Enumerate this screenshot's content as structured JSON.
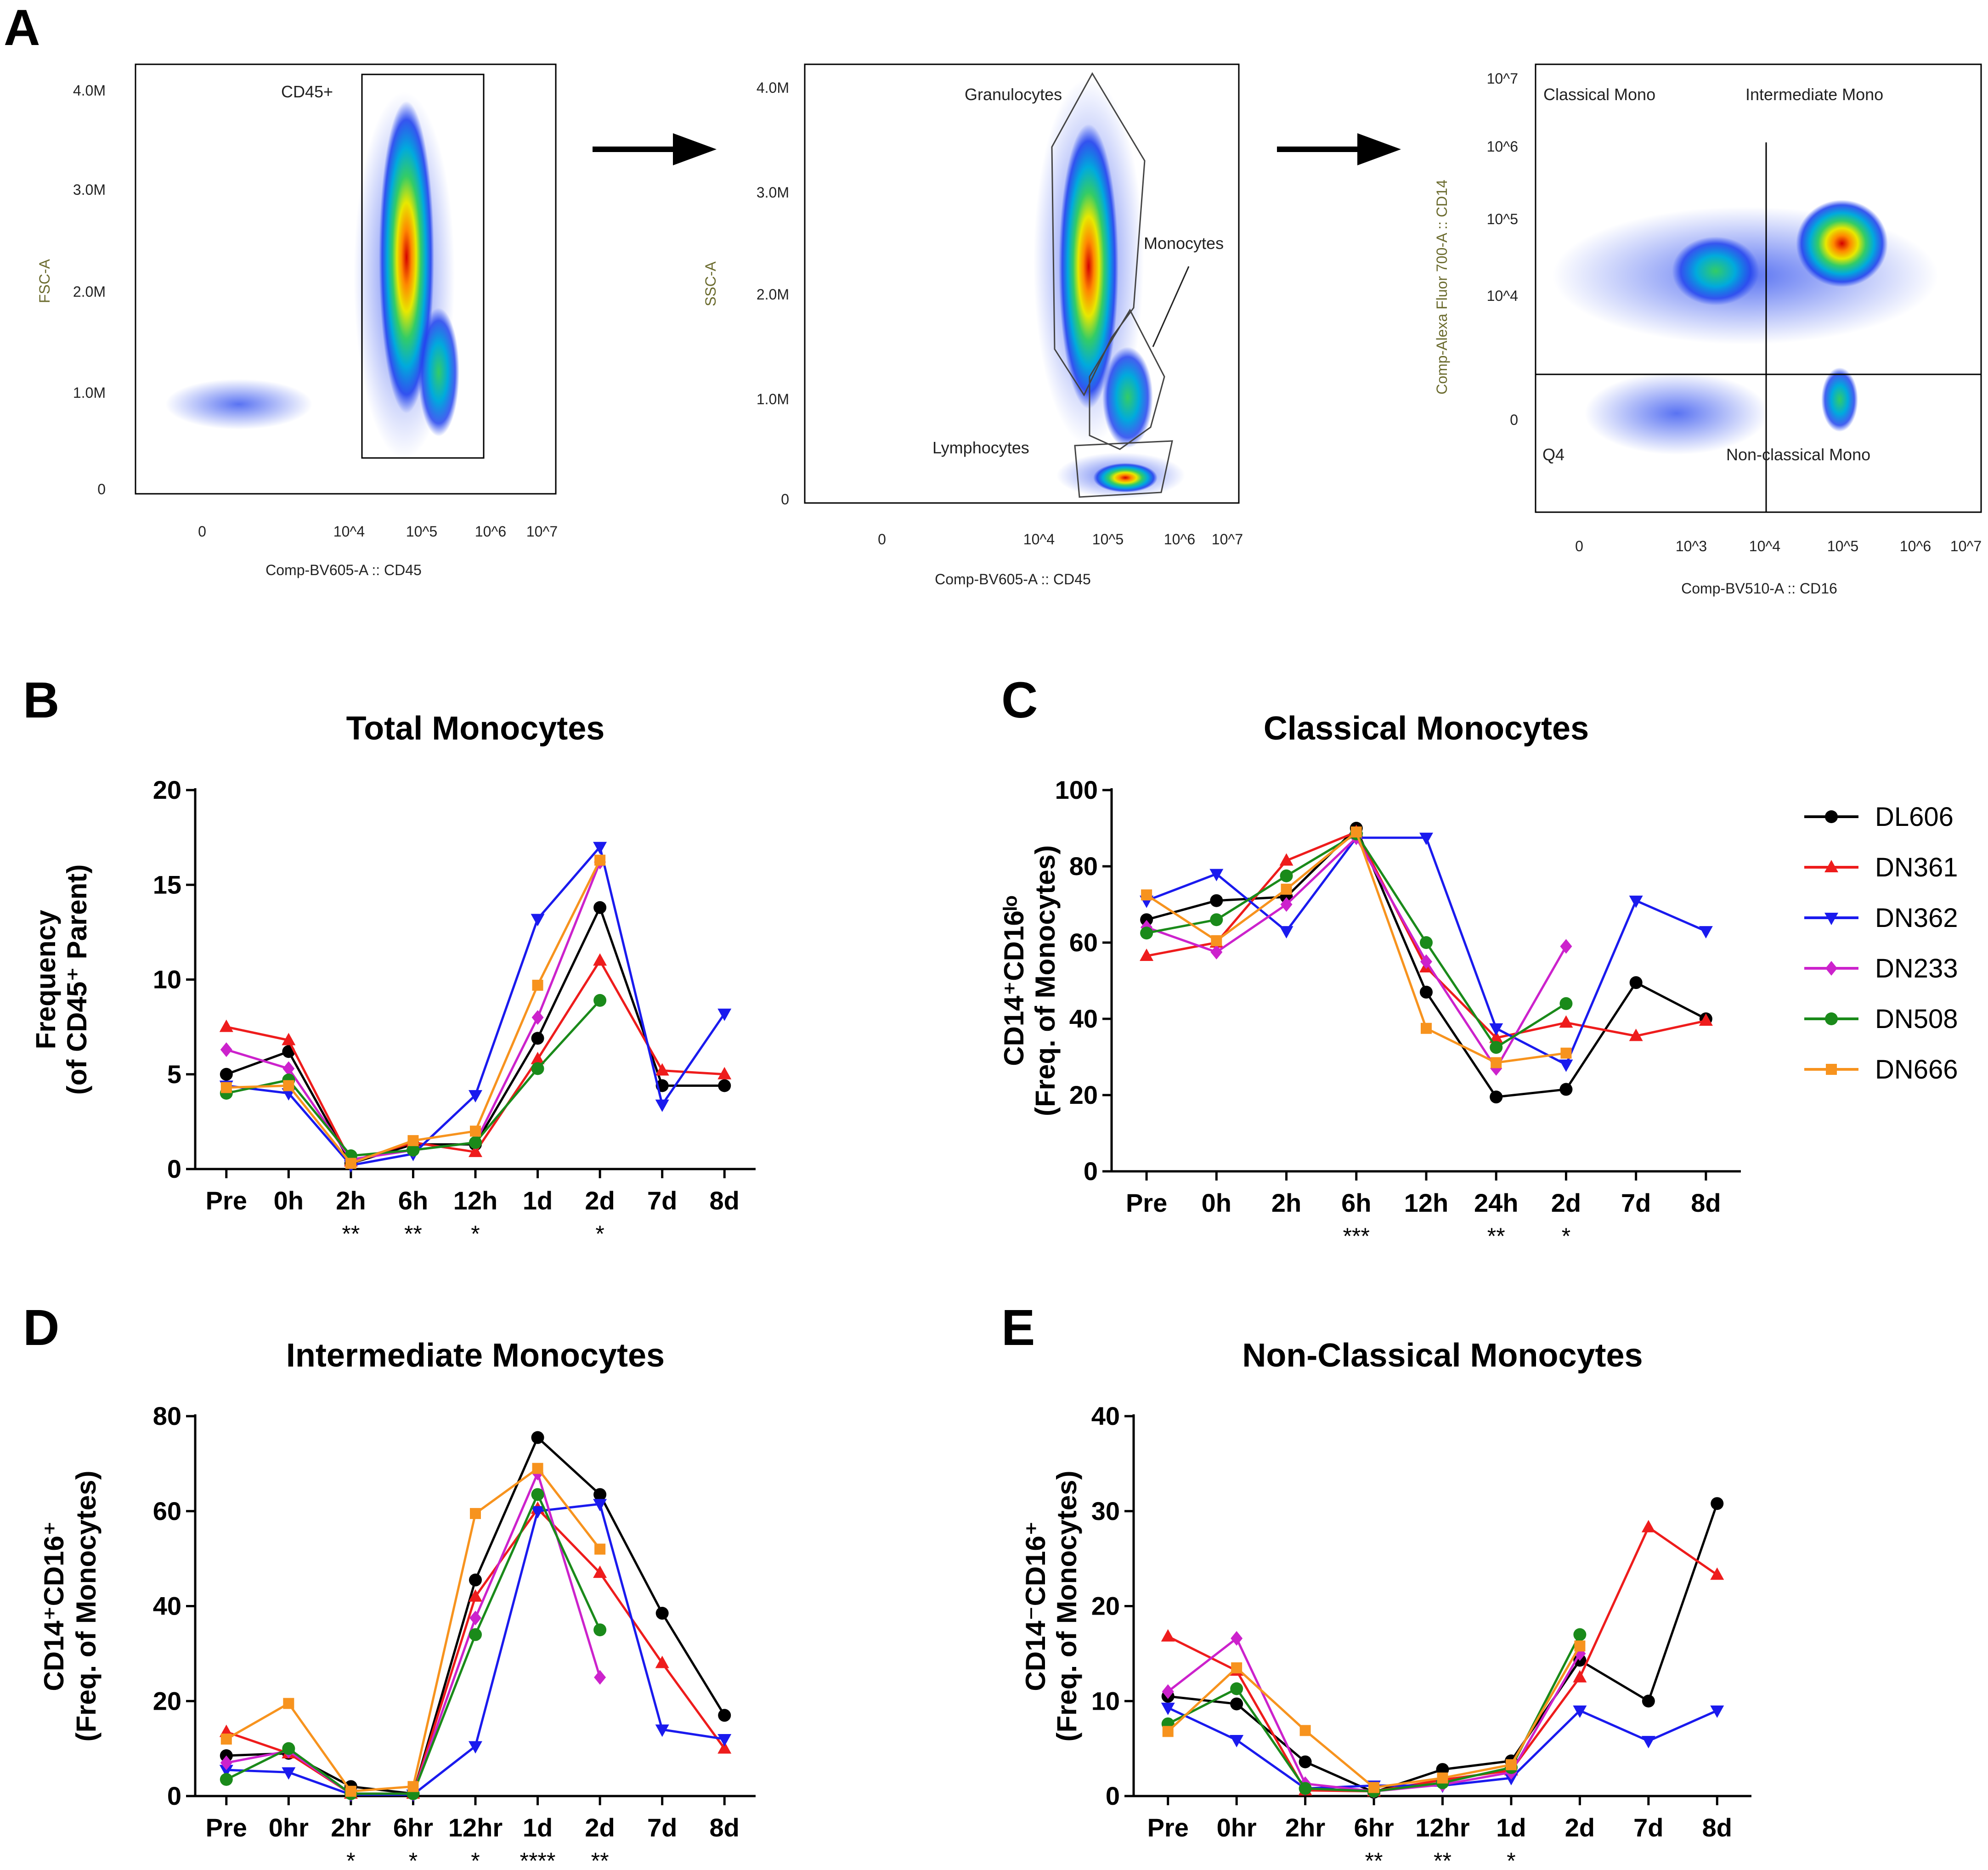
{
  "panels": {
    "a": "A",
    "b": "B",
    "c": "C",
    "d": "D",
    "e": "E"
  },
  "flow": [
    {
      "ylabel": "FSC-A",
      "xlabel": "Comp-BV605-A :: CD45",
      "yticks": [
        "4.0M",
        "3.0M",
        "2.0M",
        "1.0M",
        "0"
      ],
      "xticks": [
        "0",
        "10^4",
        "10^5",
        "10^6",
        "10^7"
      ],
      "gates": [
        "CD45+"
      ]
    },
    {
      "ylabel": "SSC-A",
      "xlabel": "Comp-BV605-A :: CD45",
      "yticks": [
        "4.0M",
        "3.0M",
        "2.0M",
        "1.0M",
        "0"
      ],
      "xticks": [
        "0",
        "10^4",
        "10^5",
        "10^6",
        "10^7"
      ],
      "gates": [
        "Granulocytes",
        "Monocytes",
        "Lymphocytes"
      ]
    },
    {
      "ylabel": "Comp-Alexa Fluor 700-A :: CD14",
      "xlabel": "Comp-BV510-A :: CD16",
      "yticks": [
        "10^7",
        "10^6",
        "10^5",
        "10^4",
        "0"
      ],
      "xticks": [
        "0",
        "10^3",
        "10^4",
        "10^5",
        "10^6",
        "10^7"
      ],
      "gates": [
        "Classical Mono",
        "Intermediate Mono",
        "Q4",
        "Non-classical Mono"
      ]
    }
  ],
  "legend": [
    "DL606",
    "DN361",
    "DN362",
    "DN233",
    "DN508",
    "DN666"
  ],
  "colors": {
    "DL606": "#000000",
    "DN361": "#ee1c1c",
    "DN362": "#1a1aee",
    "DN233": "#cc22cc",
    "DN508": "#1a8a1a",
    "DN666": "#f7931e"
  },
  "markers": {
    "DL606": "circle",
    "DN361": "triangle-up",
    "DN362": "triangle-down",
    "DN233": "diamond",
    "DN508": "circle",
    "DN666": "square"
  },
  "chart_data": [
    {
      "type": "line",
      "title": "Total Monocytes",
      "ylabel_lines": [
        "Frequency",
        "(of CD45⁺ Parent)"
      ],
      "categories": [
        "Pre",
        "0h",
        "2h",
        "6h",
        "12h",
        "1d",
        "2d",
        "7d",
        "8d"
      ],
      "yticks": [
        0,
        5,
        10,
        15,
        20
      ],
      "ylim": [
        0,
        20
      ],
      "significance": [
        "",
        "",
        "**",
        "**",
        "*",
        "",
        "*",
        "",
        ""
      ],
      "series": [
        {
          "name": "DL606",
          "values": [
            5.0,
            6.2,
            0.3,
            1.3,
            1.3,
            6.9,
            13.8,
            4.4,
            4.4
          ]
        },
        {
          "name": "DN361",
          "values": [
            7.5,
            6.8,
            0.4,
            1.4,
            0.9,
            5.8,
            11.0,
            5.2,
            5.0
          ]
        },
        {
          "name": "DN362",
          "values": [
            4.4,
            4.0,
            0.2,
            0.8,
            3.9,
            13.2,
            17.0,
            3.4,
            8.2
          ]
        },
        {
          "name": "DN233",
          "values": [
            6.3,
            5.3,
            0.5,
            1.0,
            1.4,
            8.0,
            16.2,
            null,
            null
          ]
        },
        {
          "name": "DN508",
          "values": [
            4.0,
            4.7,
            0.7,
            1.0,
            1.4,
            5.3,
            8.9,
            null,
            null
          ]
        },
        {
          "name": "DN666",
          "values": [
            4.3,
            4.4,
            0.3,
            1.5,
            2.0,
            9.7,
            16.3,
            null,
            null
          ]
        }
      ]
    },
    {
      "type": "line",
      "title": "Classical Monocytes",
      "ylabel_lines": [
        "CD14⁺CD16ˡᵒ",
        "(Freq. of Monocytes)"
      ],
      "categories": [
        "Pre",
        "0h",
        "2h",
        "6h",
        "12h",
        "24h",
        "2d",
        "7d",
        "8d"
      ],
      "yticks": [
        0,
        20,
        40,
        60,
        80,
        100
      ],
      "ylim": [
        0,
        100
      ],
      "significance": [
        "",
        "",
        "",
        "***",
        "",
        "**",
        "*",
        "",
        ""
      ],
      "series": [
        {
          "name": "DL606",
          "values": [
            66,
            71,
            72,
            90,
            47,
            19.5,
            21.5,
            49.5,
            40
          ]
        },
        {
          "name": "DN361",
          "values": [
            56.5,
            60,
            81.5,
            89,
            53.5,
            35,
            39,
            35.5,
            39.5
          ]
        },
        {
          "name": "DN362",
          "values": [
            71,
            78,
            63,
            87.5,
            87.5,
            37.5,
            28,
            71,
            63
          ]
        },
        {
          "name": "DN233",
          "values": [
            64,
            57.5,
            70,
            87.5,
            55,
            27,
            59,
            null,
            null
          ]
        },
        {
          "name": "DN508",
          "values": [
            62.5,
            66,
            77.5,
            88.5,
            60,
            32.5,
            44,
            null,
            null
          ]
        },
        {
          "name": "DN666",
          "values": [
            72.5,
            60.5,
            74,
            89,
            37.5,
            28.5,
            31,
            null,
            null
          ]
        }
      ]
    },
    {
      "type": "line",
      "title": "Intermediate Monocytes",
      "ylabel_lines": [
        "CD14⁺CD16⁺",
        "(Freq. of Monocytes)"
      ],
      "categories": [
        "Pre",
        "0hr",
        "2hr",
        "6hr",
        "12hr",
        "1d",
        "2d",
        "7d",
        "8d"
      ],
      "yticks": [
        0,
        20,
        40,
        60,
        80
      ],
      "ylim": [
        0,
        80
      ],
      "significance": [
        "",
        "",
        "*",
        "*",
        "*",
        "****",
        "**",
        "",
        ""
      ],
      "series": [
        {
          "name": "DL606",
          "values": [
            8.5,
            9,
            2,
            0.5,
            45.5,
            75.5,
            63.5,
            38.5,
            17
          ]
        },
        {
          "name": "DN361",
          "values": [
            13.5,
            9,
            0.5,
            0.5,
            42,
            60.5,
            47,
            28,
            10
          ]
        },
        {
          "name": "DN362",
          "values": [
            5.5,
            5,
            0.3,
            0.3,
            10.5,
            60,
            61.5,
            14,
            12
          ]
        },
        {
          "name": "DN233",
          "values": [
            7,
            9.5,
            0.5,
            0.5,
            37.5,
            68,
            25,
            null,
            null
          ]
        },
        {
          "name": "DN508",
          "values": [
            3.5,
            10,
            0.5,
            0.5,
            34,
            63.5,
            35,
            null,
            null
          ]
        },
        {
          "name": "DN666",
          "values": [
            12,
            19.5,
            1,
            2,
            59.5,
            69,
            52,
            null,
            null
          ]
        }
      ]
    },
    {
      "type": "line",
      "title": "Non-Classical Monocytes",
      "ylabel_lines": [
        "CD14⁻CD16⁺",
        "(Freq. of Monocytes)"
      ],
      "categories": [
        "Pre",
        "0hr",
        "2hr",
        "6hr",
        "12hr",
        "1d",
        "2d",
        "7d",
        "8d"
      ],
      "yticks": [
        0,
        10,
        20,
        30,
        40
      ],
      "ylim": [
        0,
        40
      ],
      "significance": [
        "",
        "",
        "",
        "**",
        "**",
        "*",
        "",
        "",
        ""
      ],
      "series": [
        {
          "name": "DL606",
          "values": [
            10.5,
            9.7,
            3.6,
            0.4,
            2.8,
            3.7,
            14.3,
            10,
            30.8
          ]
        },
        {
          "name": "DN361",
          "values": [
            16.8,
            13.2,
            0.6,
            0.5,
            1.7,
            2.7,
            12.5,
            28.3,
            23.3
          ]
        },
        {
          "name": "DN362",
          "values": [
            9.3,
            5.9,
            0.8,
            1.1,
            1.1,
            1.9,
            9,
            5.8,
            9
          ]
        },
        {
          "name": "DN233",
          "values": [
            11,
            16.6,
            1.3,
            0.5,
            1.2,
            2.5,
            15,
            null,
            null
          ]
        },
        {
          "name": "DN508",
          "values": [
            7.6,
            11.3,
            0.8,
            0.5,
            1.4,
            3.0,
            17.0,
            null,
            null
          ]
        },
        {
          "name": "DN666",
          "values": [
            6.8,
            13.5,
            6.9,
            0.9,
            1.9,
            3.3,
            15.8,
            null,
            null
          ]
        }
      ]
    }
  ]
}
